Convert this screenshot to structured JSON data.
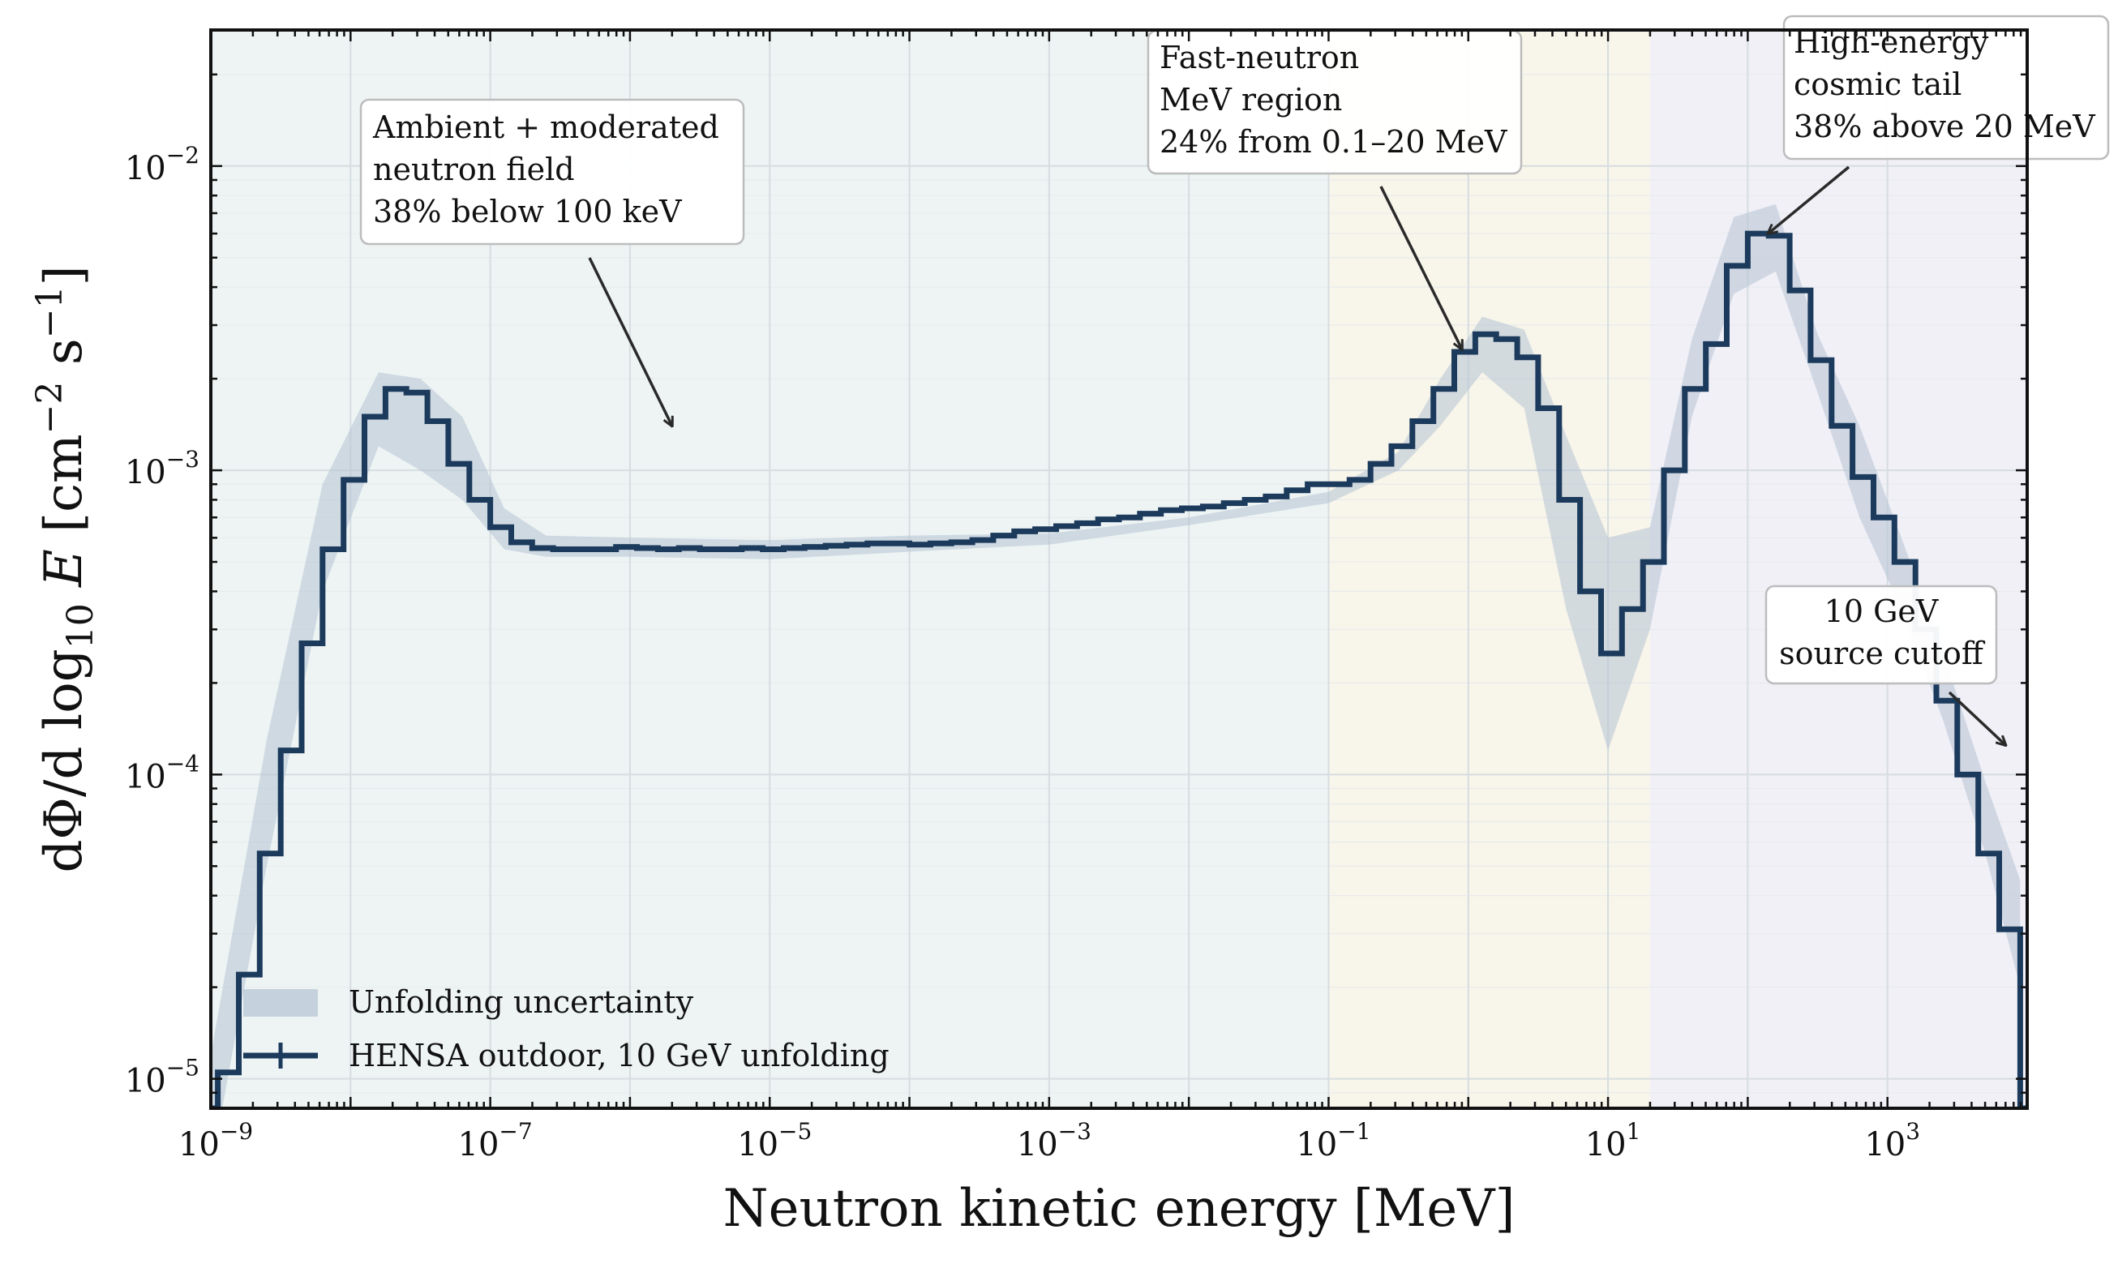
{
  "chart_data": {
    "type": "line",
    "xlabel": "Neutron kinetic energy [MeV]",
    "ylabel": {
      "prefix": "dΦ/d log",
      "sub": "10",
      "var": "E",
      "units": "[cm",
      "exp1": "−2",
      "mid": " s",
      "exp2": "−1",
      "end": "]"
    },
    "xscale": "log",
    "yscale": "log",
    "xlim": [
      1e-09,
      10000
    ],
    "ylim": [
      8e-06,
      0.028
    ],
    "x_ticks": [
      {
        "value": 1e-09,
        "base": "10",
        "exp": "−9"
      },
      {
        "value": 1e-07,
        "base": "10",
        "exp": "−7"
      },
      {
        "value": 1e-05,
        "base": "10",
        "exp": "−5"
      },
      {
        "value": 0.001,
        "base": "10",
        "exp": "−3"
      },
      {
        "value": 0.1,
        "base": "10",
        "exp": "−1"
      },
      {
        "value": 10,
        "base": "10",
        "exp": "1"
      },
      {
        "value": 1000,
        "base": "10",
        "exp": "3"
      }
    ],
    "y_ticks": [
      {
        "value": 1e-05,
        "base": "10",
        "exp": "−5"
      },
      {
        "value": 0.0001,
        "base": "10",
        "exp": "−4"
      },
      {
        "value": 0.001,
        "base": "10",
        "exp": "−3"
      },
      {
        "value": 0.01,
        "base": "10",
        "exp": "−2"
      }
    ],
    "grid": true,
    "regions": [
      {
        "x_start": 1e-09,
        "x_end": 0.1,
        "color": "#eef4f4"
      },
      {
        "x_start": 0.1,
        "x_end": 20,
        "color": "#f8f5ea"
      },
      {
        "x_start": 20,
        "x_end": 10000,
        "color": "#f1f0f7"
      }
    ],
    "series": [
      {
        "name": "HENSA outdoor, 10 GeV unfolding",
        "style": "step",
        "color": "#1b3a5c",
        "bin_edges_log10": [
          -9.1,
          -8.95,
          -8.8,
          -8.65,
          -8.5,
          -8.35,
          -8.2,
          -8.05,
          -7.9,
          -7.75,
          -7.6,
          -7.45,
          -7.3,
          -7.15,
          -7.0,
          -6.85,
          -6.7,
          -6.55,
          -6.4,
          -6.25,
          -6.1,
          -5.95,
          -5.8,
          -5.65,
          -5.5,
          -5.35,
          -5.2,
          -5.05,
          -4.9,
          -4.75,
          -4.6,
          -4.45,
          -4.3,
          -4.15,
          -4.0,
          -3.85,
          -3.7,
          -3.55,
          -3.4,
          -3.25,
          -3.1,
          -2.95,
          -2.8,
          -2.65,
          -2.5,
          -2.35,
          -2.2,
          -2.05,
          -1.9,
          -1.75,
          -1.6,
          -1.45,
          -1.3,
          -1.15,
          -1.0,
          -0.85,
          -0.7,
          -0.55,
          -0.4,
          -0.25,
          -0.1,
          0.05,
          0.2,
          0.35,
          0.5,
          0.65,
          0.8,
          0.95,
          1.1,
          1.25,
          1.4,
          1.55,
          1.7,
          1.85,
          2.0,
          2.15,
          2.3,
          2.45,
          2.6,
          2.75,
          2.9,
          3.05,
          3.2,
          3.35,
          3.5,
          3.65,
          3.8,
          3.95,
          4.0
        ],
        "values": [
          8e-06,
          1.05e-05,
          2.2e-05,
          5.5e-05,
          0.00012,
          0.00027,
          0.00055,
          0.00093,
          0.0015,
          0.00185,
          0.0018,
          0.00145,
          0.00105,
          0.0008,
          0.00065,
          0.00058,
          0.000555,
          0.00055,
          0.00055,
          0.00055,
          0.00056,
          0.000555,
          0.00055,
          0.000555,
          0.00055,
          0.00055,
          0.000555,
          0.00055,
          0.000555,
          0.00056,
          0.000565,
          0.00057,
          0.000575,
          0.000575,
          0.00057,
          0.000575,
          0.00058,
          0.00059,
          0.00061,
          0.00063,
          0.00064,
          0.000655,
          0.00067,
          0.00069,
          0.0007,
          0.00072,
          0.00074,
          0.00075,
          0.00076,
          0.00078,
          0.0008,
          0.00082,
          0.00086,
          0.0009,
          0.0009,
          0.00093,
          0.00105,
          0.0012,
          0.00145,
          0.00185,
          0.00245,
          0.0028,
          0.0027,
          0.00235,
          0.0016,
          0.0008,
          0.0004,
          0.00025,
          0.00035,
          0.0005,
          0.001,
          0.00185,
          0.0026,
          0.0047,
          0.006,
          0.0059,
          0.0039,
          0.0023,
          0.0014,
          0.00095,
          0.0007,
          0.0005,
          0.0003,
          0.000175,
          0.0001,
          5.5e-05,
          3.1e-05,
          8e-06
        ]
      },
      {
        "name": "Unfolding uncertainty",
        "style": "band",
        "color": "#b4c3d3",
        "x_log10": [
          -9.0,
          -8.6,
          -8.2,
          -7.8,
          -7.5,
          -7.2,
          -6.9,
          -6.6,
          -6.0,
          -5.0,
          -4.0,
          -3.0,
          -2.0,
          -1.0,
          -0.5,
          -0.2,
          0.1,
          0.4,
          0.7,
          1.0,
          1.3,
          1.6,
          1.9,
          2.2,
          2.5,
          2.8,
          3.1,
          3.4,
          3.7,
          3.95
        ],
        "lower": [
          5e-06,
          5e-05,
          0.0004,
          0.0012,
          0.001,
          0.0008,
          0.00055,
          0.00052,
          0.00052,
          0.00051,
          0.00054,
          0.00057,
          0.00066,
          0.00078,
          0.001,
          0.0014,
          0.0021,
          0.0016,
          0.00035,
          0.00012,
          0.0003,
          0.0015,
          0.0038,
          0.0045,
          0.0018,
          0.0007,
          0.00035,
          0.00015,
          5.5e-05,
          2e-05
        ],
        "upper": [
          1.2e-05,
          0.00013,
          0.0009,
          0.0021,
          0.002,
          0.0015,
          0.00075,
          0.00061,
          0.0006,
          0.00059,
          0.00061,
          0.00062,
          0.0007,
          0.00085,
          0.00115,
          0.002,
          0.0032,
          0.0029,
          0.0013,
          0.0006,
          0.00065,
          0.0027,
          0.0068,
          0.0075,
          0.0028,
          0.0014,
          0.0006,
          0.00025,
          9.5e-05,
          4.5e-05
        ]
      }
    ],
    "annotations": [
      {
        "lines": [
          "Ambient + moderated",
          "neutron field",
          "38% below 100 keV"
        ],
        "arrow_to": [
          2e-06,
          0.0014
        ]
      },
      {
        "lines": [
          "Fast-neutron",
          "MeV region",
          "24% from 0.1–20 MeV"
        ],
        "arrow_to": [
          0.9,
          0.0025
        ]
      },
      {
        "lines": [
          "High-energy",
          "cosmic tail",
          "38% above 20 MeV"
        ],
        "arrow_to": [
          140,
          0.006
        ]
      },
      {
        "lines": [
          "10 GeV",
          "source cutoff"
        ],
        "arrow_to": [
          7000,
          0.000125
        ]
      }
    ],
    "legend": {
      "placement": "lower-left",
      "entries": [
        {
          "label": "Unfolding uncertainty",
          "kind": "band"
        },
        {
          "label": "HENSA outdoor, 10 GeV unfolding",
          "kind": "line"
        }
      ]
    }
  }
}
